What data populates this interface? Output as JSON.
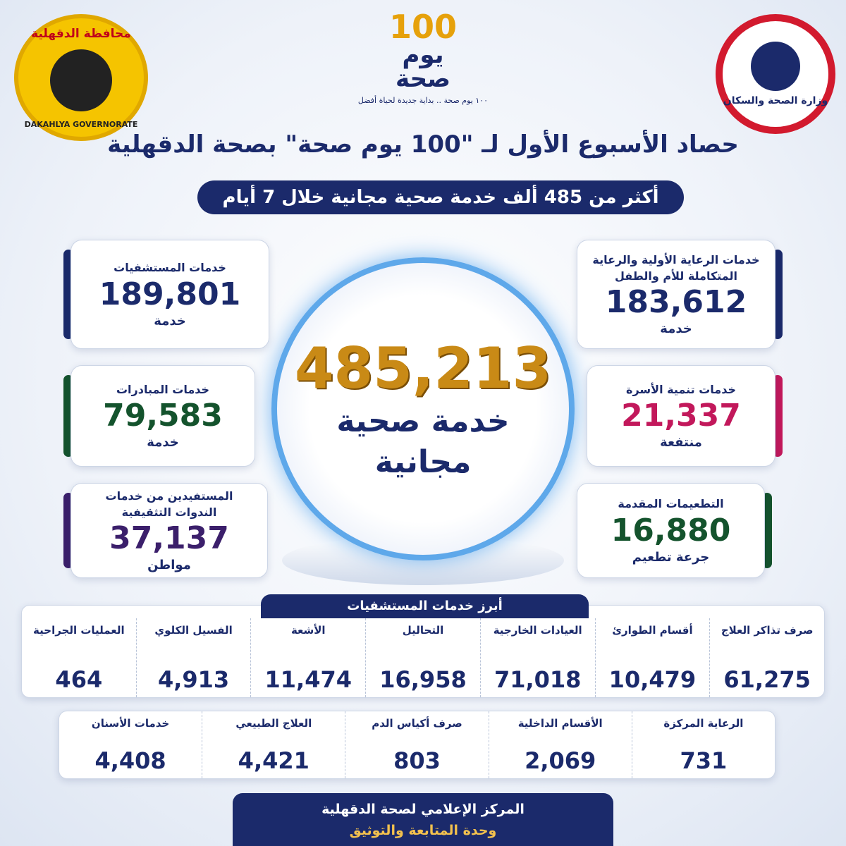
{
  "header": {
    "governorate_ar": "محافظة الدقهلية",
    "governorate_en": "DAKAHLYA GOVERNORATE",
    "ministry": "وزارة الصحة والسكان",
    "campaign_number": "100",
    "campaign_word1": "يوم",
    "campaign_word2": "صحة",
    "campaign_slogan": "١٠٠ يوم صحة .. بداية جديدة لحياة أفضل"
  },
  "title": "حصاد الأسبوع الأول لـ \"100 يوم صحة\" بصحة الدقهلية",
  "subtitle": "أكثر من 485 ألف خدمة صحية مجانية خلال 7 أيام",
  "total": {
    "value": "485,213",
    "line1": "خدمة صحية",
    "line2": "مجانية"
  },
  "cards": [
    {
      "label": "خدمات الرعاية الأولية والرعاية المتكاملة للأم والطفل",
      "value": "183,612",
      "unit": "خدمة"
    },
    {
      "label": "خدمات المستشفيات",
      "value": "189,801",
      "unit": "خدمة"
    },
    {
      "label": "خدمات تنمية الأسرة",
      "value": "21,337",
      "unit": "منتفعة"
    },
    {
      "label": "خدمات المبادرات",
      "value": "79,583",
      "unit": "خدمة"
    },
    {
      "label": "التطعيمات المقدمة",
      "value": "16,880",
      "unit": "جرعة تطعيم"
    },
    {
      "label": "المستفيدين من خدمات الندوات التثقيفية",
      "value": "37,137",
      "unit": "مواطن"
    }
  ],
  "hospital": {
    "title": "أبرز خدمات المستشفيات",
    "row1": [
      {
        "label": "صرف تذاكر العلاج",
        "value": "61,275"
      },
      {
        "label": "أقسام الطوارئ",
        "value": "10,479"
      },
      {
        "label": "العيادات الخارجية",
        "value": "71,018"
      },
      {
        "label": "التحاليل",
        "value": "16,958"
      },
      {
        "label": "الأشعة",
        "value": "11,474"
      },
      {
        "label": "الفسيل الكلوي",
        "value": "4,913"
      },
      {
        "label": "العمليات الجراحية",
        "value": "464"
      }
    ],
    "row2": [
      {
        "label": "الرعاية المركزة",
        "value": "731"
      },
      {
        "label": "الأقسام الداخلية",
        "value": "2,069"
      },
      {
        "label": "صرف أكياس الدم",
        "value": "803"
      },
      {
        "label": "العلاج الطبيعي",
        "value": "4,421"
      },
      {
        "label": "خدمات الأسنان",
        "value": "4,408"
      }
    ]
  },
  "footer": {
    "line1": "المركز الإعلامي لصحة الدقهلية",
    "line2": "وحدة المتابعة والتوثيق"
  }
}
